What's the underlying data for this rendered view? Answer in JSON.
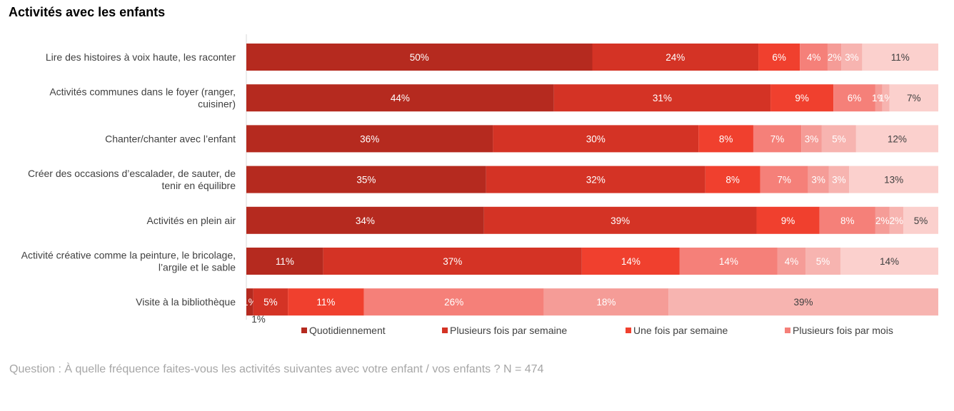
{
  "title": "Activités avec les enfants",
  "question": "Question : À quelle fréquence faites-vous les activités suivantes avec votre enfant / vos enfants ? N = 474",
  "colors": [
    "#b52a1f",
    "#d43325",
    "#f0402e",
    "#f58079",
    "#f59c97",
    "#f7b4b0",
    "#fbd0cd"
  ],
  "chart_data": {
    "type": "bar",
    "orientation": "horizontal",
    "stacked": "100%",
    "categories": [
      "Lire des histoires à voix haute, les raconter",
      "Activités communes dans le foyer (ranger, cuisiner)",
      "Chanter/chanter avec l’enfant",
      "Créer des occasions d’escalader, de sauter, de tenir en équilibre",
      "Activités en plein air",
      "Activité créative comme la peinture, le bricolage, l’argile et le sable",
      "Visite à la bibliothèque"
    ],
    "category_lines": [
      [
        "Lire des histoires à voix haute, les raconter"
      ],
      [
        "Activités communes dans le foyer (ranger,",
        "cuisiner)"
      ],
      [
        "Chanter/chanter avec l’enfant"
      ],
      [
        "Créer des occasions d’escalader, de sauter, de",
        "tenir en équilibre"
      ],
      [
        "Activités en plein air"
      ],
      [
        "Activité créative comme la peinture, le bricolage,",
        "l’argile et le sable"
      ],
      [
        "Visite à la bibliothèque"
      ]
    ],
    "series": [
      {
        "name": "Quotidiennement",
        "values": [
          50,
          44,
          36,
          35,
          34,
          11,
          1
        ]
      },
      {
        "name": "Plusieurs fois par semaine",
        "values": [
          24,
          31,
          30,
          32,
          39,
          37,
          5
        ]
      },
      {
        "name": "Une fois par semaine",
        "values": [
          6,
          9,
          8,
          8,
          9,
          14,
          11
        ]
      },
      {
        "name": "Plusieurs fois par mois",
        "values": [
          4,
          6,
          7,
          7,
          8,
          14,
          26
        ]
      },
      {
        "values": [
          2,
          1,
          3,
          3,
          2,
          4,
          18
        ]
      },
      {
        "values": [
          3,
          1,
          5,
          3,
          2,
          5,
          39
        ]
      },
      {
        "values": [
          11,
          7,
          12,
          13,
          5,
          14,
          0
        ]
      }
    ],
    "extra_label": {
      "row": 6,
      "text": "1%"
    },
    "legend_position": "bottom",
    "xlim": [
      0,
      100
    ],
    "grid": false
  }
}
